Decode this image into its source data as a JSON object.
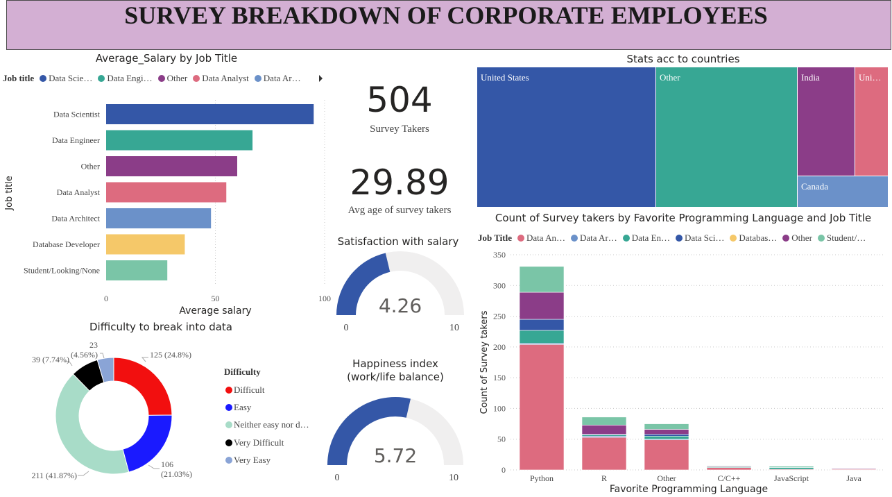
{
  "banner": {
    "title": "SURVEY BREAKDOWN OF CORPORATE EMPLOYEES"
  },
  "colors": {
    "banner_bg": "#d3afd3",
    "data_scientist": "#3457a7",
    "data_engineer": "#37a794",
    "other": "#8b3d88",
    "data_analyst": "#dd6b7f",
    "data_architect": "#6b91c9",
    "database_developer": "#f5c869",
    "student": "#7ac5a7"
  },
  "salary_chart": {
    "title": "Average_Salary by Job Title",
    "legend_title": "Job title",
    "legend_items": [
      "Data Scie…",
      "Data Engi…",
      "Other",
      "Data Analyst",
      "Data Ar…"
    ],
    "nav_icon": "chevron-right-icon",
    "chart_data": {
      "type": "bar",
      "orientation": "horizontal",
      "categories": [
        "Data Scientist",
        "Data Engineer",
        "Other",
        "Data Analyst",
        "Data Architect",
        "Database Developer",
        "Student/Looking/None"
      ],
      "values": [
        95,
        67,
        60,
        55,
        48,
        36,
        28
      ],
      "xlabel": "Average salary",
      "ylabel": "Job title",
      "xlim": [
        0,
        100
      ],
      "xticks": [
        "0",
        "50",
        "100"
      ],
      "grid": "vertical dotted"
    }
  },
  "kpis": {
    "survey_takers": {
      "value": "504",
      "label": "Survey Takers"
    },
    "avg_age": {
      "value": "29.89",
      "label": "Avg age of survey takers"
    }
  },
  "gauges": {
    "satisfaction": {
      "title": "Satisfaction with salary",
      "value": 4.26,
      "value_label": "4.26",
      "min_label": "0",
      "max_label": "10",
      "min": 0,
      "max": 10
    },
    "happiness": {
      "title_line1": "Happiness index",
      "title_line2": "(work/life balance)",
      "value": 5.72,
      "value_label": "5.72",
      "min_label": "0",
      "max_label": "10",
      "min": 0,
      "max": 10
    }
  },
  "difficulty_chart": {
    "title": "Difficulty to break into data",
    "legend_title": "Difficulty",
    "legend_items": [
      {
        "label": "Difficult",
        "color": "#f20f0f"
      },
      {
        "label": "Easy",
        "color": "#1a1aff"
      },
      {
        "label": "Neither easy nor d…",
        "color": "#a8dcc8"
      },
      {
        "label": "Very Difficult",
        "color": "#000000"
      },
      {
        "label": "Very Easy",
        "color": "#8aa4d6"
      }
    ],
    "slice_labels": {
      "difficult": "125 (24.8%)",
      "easy_1": "106",
      "easy_2": "(21.03%)",
      "neither": "211 (41.87%)",
      "very_difficult": "39 (7.74%)",
      "very_easy_1": "23",
      "very_easy_2": "(4.56%)"
    },
    "chart_data": {
      "type": "pie",
      "style": "donut",
      "labels": [
        "Difficult",
        "Easy",
        "Neither easy nor d…",
        "Very Difficult",
        "Very Easy"
      ],
      "values": [
        125,
        106,
        211,
        39,
        23
      ],
      "percentages": [
        24.8,
        21.03,
        41.87,
        7.74,
        4.56
      ]
    }
  },
  "treemap": {
    "title": "Stats acc to countries",
    "chart_data": {
      "type": "treemap",
      "labels": [
        "United States",
        "Other",
        "India",
        "Uni…",
        "Canada"
      ],
      "colors": [
        "#3457a7",
        "#37a794",
        "#8b3d88",
        "#dd6b7f",
        "#6b91c9"
      ]
    }
  },
  "lang_chart": {
    "title": "Count of Survey takers by Favorite Programming Language and Job Title",
    "legend_title": "Job Title",
    "legend_items": [
      "Data An…",
      "Data Ar…",
      "Data En…",
      "Data Sci…",
      "Databas…",
      "Other",
      "Student/…"
    ],
    "chart_data": {
      "type": "bar",
      "stacked": true,
      "categories": [
        "Python",
        "R",
        "Other",
        "C/C++",
        "JavaScript",
        "Java"
      ],
      "xlabel": "Favorite Programming Language",
      "ylabel": "Count of Survey takers",
      "ylim": [
        0,
        350
      ],
      "yticks": [
        "0",
        "50",
        "100",
        "150",
        "200",
        "250",
        "300",
        "350"
      ],
      "series": [
        {
          "name": "Data An…",
          "values": [
            204,
            53,
            49,
            4,
            1,
            1
          ]
        },
        {
          "name": "Data Ar…",
          "values": [
            2,
            2,
            1,
            0,
            0,
            0
          ]
        },
        {
          "name": "Data En…",
          "values": [
            21,
            2,
            5,
            1,
            3,
            0
          ]
        },
        {
          "name": "Data Sci…",
          "values": [
            18,
            1,
            3,
            0,
            0,
            0
          ]
        },
        {
          "name": "Databas…",
          "values": [
            0,
            0,
            0,
            0,
            0,
            0
          ]
        },
        {
          "name": "Other",
          "values": [
            44,
            15,
            8,
            1,
            0,
            1
          ]
        },
        {
          "name": "Student/…",
          "values": [
            42,
            13,
            9,
            1,
            2,
            0
          ]
        }
      ]
    }
  }
}
